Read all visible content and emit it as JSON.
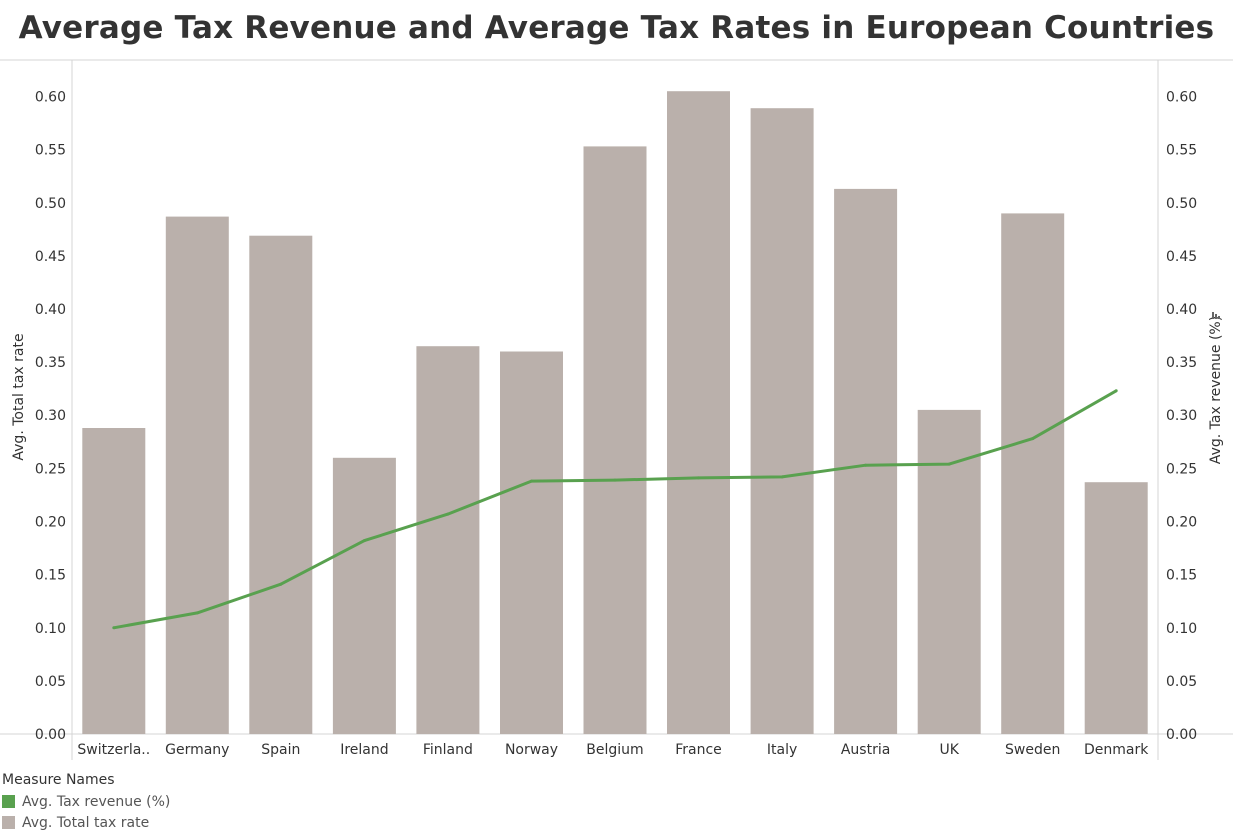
{
  "chart_data": {
    "type": "bar",
    "title": "Average Tax Revenue and Average Tax Rates in European Countries",
    "categories": [
      "Switzerla..",
      "Germany",
      "Spain",
      "Ireland",
      "Finland",
      "Norway",
      "Belgium",
      "France",
      "Italy",
      "Austria",
      "UK",
      "Sweden",
      "Denmark"
    ],
    "y_left": {
      "label": "Avg. Total tax rate",
      "lim": [
        0,
        0.6
      ],
      "ticks": [
        "0.00",
        "0.05",
        "0.10",
        "0.15",
        "0.20",
        "0.25",
        "0.30",
        "0.35",
        "0.40",
        "0.45",
        "0.50",
        "0.55",
        "0.60"
      ]
    },
    "y_right": {
      "label": "Avg. Tax revenue (%)",
      "lim": [
        0,
        0.6
      ],
      "ticks": [
        "0.00",
        "0.05",
        "0.10",
        "0.15",
        "0.20",
        "0.25",
        "0.30",
        "0.35",
        "0.40",
        "0.45",
        "0.50",
        "0.55",
        "0.60"
      ]
    },
    "series": [
      {
        "name": "Avg. Total tax rate",
        "kind": "bar",
        "color": "#bab0ab",
        "values": [
          0.288,
          0.487,
          0.469,
          0.26,
          0.365,
          0.36,
          0.553,
          0.605,
          0.589,
          0.513,
          0.305,
          0.49,
          0.237
        ]
      },
      {
        "name": "Avg. Tax revenue (%)",
        "kind": "line",
        "color": "#59a14f",
        "values": [
          0.1,
          0.114,
          0.141,
          0.182,
          0.207,
          0.238,
          0.239,
          0.241,
          0.242,
          0.253,
          0.254,
          0.278,
          0.323
        ]
      }
    ],
    "legend": {
      "title": "Measure Names",
      "position": "bottom-left",
      "items": [
        {
          "label": "Avg. Tax revenue (%)",
          "color": "#59a14f"
        },
        {
          "label": "Avg. Total tax rate",
          "color": "#bab0ab"
        }
      ]
    },
    "grid": false
  }
}
